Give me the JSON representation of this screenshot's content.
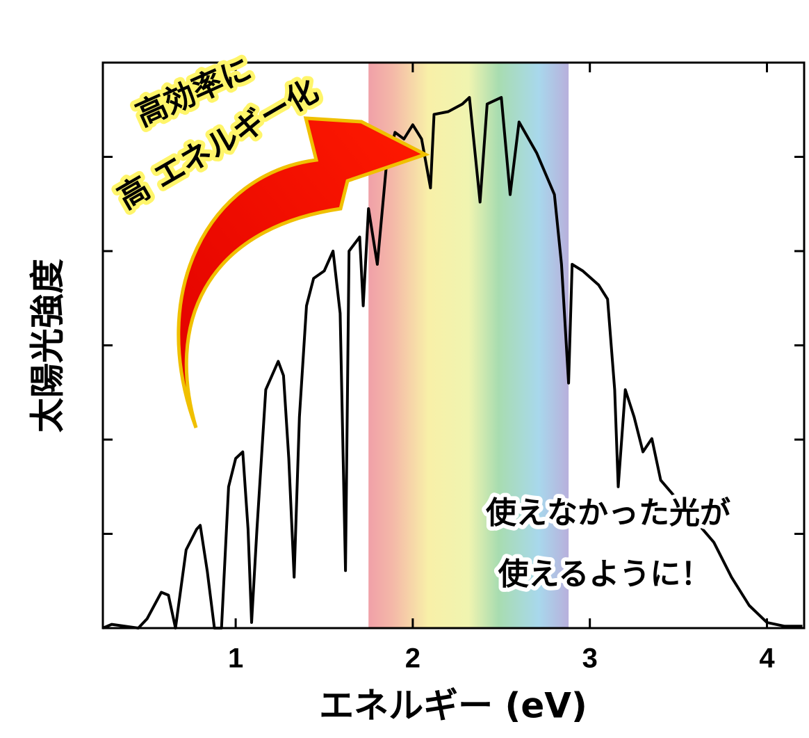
{
  "chart_data": {
    "type": "line",
    "x_label": "エネルギー (eV)",
    "y_label": "太陽光強度",
    "annotations": [
      "高効率に",
      "高 エネルギー化",
      "使えなかった光が",
      "使えるように！"
    ],
    "band": [
      1.75,
      2.88
    ],
    "color": "#000000",
    "xlim": [
      0.25,
      4.21
    ],
    "ylim": [
      0,
      6
    ],
    "xticks": [
      1,
      2,
      3,
      4
    ],
    "yticks": [
      1,
      2,
      3,
      4,
      5
    ],
    "x": [
      0.25,
      0.3,
      0.45,
      0.5,
      0.58,
      0.62,
      0.66,
      0.72,
      0.78,
      0.8,
      0.84,
      0.88,
      0.92,
      0.96,
      1.0,
      1.04,
      1.07,
      1.09,
      1.12,
      1.17,
      1.24,
      1.27,
      1.3,
      1.33,
      1.36,
      1.4,
      1.44,
      1.5,
      1.55,
      1.59,
      1.62,
      1.64,
      1.7,
      1.72,
      1.75,
      1.8,
      1.85,
      1.9,
      1.95,
      2.0,
      2.05,
      2.1,
      2.12,
      2.2,
      2.28,
      2.32,
      2.38,
      2.42,
      2.5,
      2.55,
      2.6,
      2.7,
      2.8,
      2.84,
      2.88,
      2.9,
      2.96,
      3.05,
      3.1,
      3.14,
      3.16,
      3.2,
      3.25,
      3.3,
      3.35,
      3.4,
      3.5,
      3.6,
      3.7,
      3.8,
      3.9,
      4.0,
      4.1,
      4.2
    ],
    "values": [
      0,
      0.04,
      0,
      0.1,
      0.38,
      0.35,
      0,
      0.83,
      1.05,
      1.09,
      0.6,
      0,
      0,
      1.5,
      1.8,
      1.87,
      1.05,
      0.06,
      1.05,
      2.53,
      2.83,
      2.68,
      1.8,
      0.54,
      2.24,
      3.42,
      3.71,
      3.79,
      4.0,
      3.34,
      0.61,
      4.0,
      4.15,
      3.42,
      4.45,
      3.86,
      4.89,
      5.26,
      5.19,
      5.34,
      5.19,
      4.67,
      5.45,
      5.48,
      5.56,
      5.63,
      4.52,
      5.56,
      5.63,
      4.6,
      5.37,
      5.04,
      4.6,
      3.86,
      2.6,
      3.86,
      3.79,
      3.64,
      3.49,
      2.53,
      1.5,
      2.53,
      2.24,
      1.87,
      2.01,
      1.57,
      1.35,
      1.13,
      0.91,
      0.54,
      0.24,
      0.06,
      0.02,
      0.02
    ]
  }
}
